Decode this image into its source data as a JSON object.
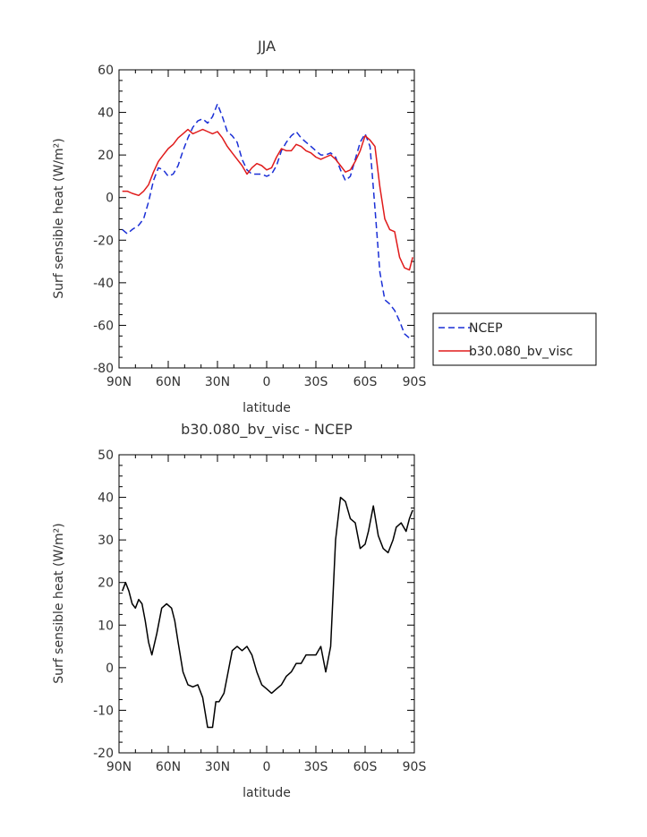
{
  "colors": {
    "ncep": "#1a2fd6",
    "model": "#e01b1b",
    "diff": "#000000",
    "axis": "#000000"
  },
  "chart_data": [
    {
      "type": "line",
      "title": "JJA",
      "xlabel": "latitude",
      "ylabel": "Surf sensible heat (W/m²)",
      "xlim": [
        -90,
        90
      ],
      "ylim": [
        -80,
        60
      ],
      "x_tick_values": [
        -90,
        -60,
        -30,
        0,
        30,
        60,
        90
      ],
      "x_tick_labels": [
        "90N",
        "60N",
        "30N",
        "0",
        "30S",
        "60S",
        "90S"
      ],
      "y_ticks": [
        -80,
        -60,
        -40,
        -20,
        0,
        20,
        40,
        60
      ],
      "legend": "right",
      "series": [
        {
          "name": "NCEP",
          "style": "dashed",
          "x": [
            -88,
            -85,
            -82,
            -78,
            -75,
            -72,
            -69,
            -66,
            -63,
            -60,
            -57,
            -54,
            -51,
            -48,
            -45,
            -42,
            -39,
            -36,
            -33,
            -30,
            -27,
            -24,
            -21,
            -18,
            -15,
            -12,
            -9,
            -6,
            -3,
            0,
            3,
            6,
            9,
            12,
            15,
            18,
            21,
            24,
            27,
            30,
            33,
            36,
            39,
            42,
            45,
            48,
            51,
            54,
            57,
            60,
            63,
            66,
            69,
            72,
            75,
            78,
            81,
            84,
            87,
            89
          ],
          "y": [
            -15,
            -17,
            -15,
            -13,
            -10,
            -2,
            8,
            14,
            13,
            10,
            11,
            15,
            22,
            28,
            33,
            36,
            37,
            35,
            38,
            44,
            38,
            31,
            29,
            26,
            18,
            13,
            11,
            11,
            11,
            10,
            11,
            15,
            22,
            26,
            29,
            31,
            28,
            26,
            24,
            22,
            20,
            20,
            21,
            19,
            13,
            8,
            10,
            18,
            26,
            30,
            24,
            -5,
            -35,
            -48,
            -50,
            -53,
            -58,
            -64,
            -66,
            -66
          ]
        },
        {
          "name": "b30.080_bv_visc",
          "style": "solid",
          "x": [
            -88,
            -85,
            -82,
            -78,
            -75,
            -72,
            -69,
            -66,
            -63,
            -60,
            -57,
            -54,
            -51,
            -48,
            -45,
            -42,
            -39,
            -36,
            -33,
            -30,
            -27,
            -24,
            -21,
            -18,
            -15,
            -12,
            -9,
            -6,
            -3,
            0,
            3,
            6,
            9,
            12,
            15,
            18,
            21,
            24,
            27,
            30,
            33,
            36,
            39,
            42,
            45,
            48,
            51,
            54,
            57,
            60,
            63,
            66,
            69,
            72,
            75,
            78,
            81,
            84,
            87,
            89
          ],
          "y": [
            3,
            3,
            2,
            1,
            3,
            6,
            12,
            17,
            20,
            23,
            25,
            28,
            30,
            32,
            30,
            31,
            32,
            31,
            30,
            31,
            28,
            24,
            21,
            18,
            15,
            11,
            14,
            16,
            15,
            13,
            14,
            19,
            23,
            22,
            22,
            25,
            24,
            22,
            21,
            19,
            18,
            19,
            20,
            18,
            15,
            12,
            13,
            17,
            22,
            29,
            27,
            24,
            5,
            -10,
            -15,
            -16,
            -28,
            -33,
            -34,
            -28
          ]
        }
      ]
    },
    {
      "type": "line",
      "title": "b30.080_bv_visc - NCEP",
      "xlabel": "latitude",
      "ylabel": "Surf sensible heat (W/m²)",
      "xlim": [
        -90,
        90
      ],
      "ylim": [
        -20,
        50
      ],
      "x_tick_values": [
        -90,
        -60,
        -30,
        0,
        30,
        60,
        90
      ],
      "x_tick_labels": [
        "90N",
        "60N",
        "30N",
        "0",
        "30S",
        "60S",
        "90S"
      ],
      "y_ticks": [
        -20,
        -10,
        0,
        10,
        20,
        30,
        40,
        50
      ],
      "series": [
        {
          "style": "solid",
          "x": [
            -88,
            -86,
            -84,
            -82,
            -80,
            -78,
            -76,
            -74,
            -72,
            -70,
            -67,
            -64,
            -61,
            -58,
            -56,
            -54,
            -51,
            -48,
            -45,
            -42,
            -39,
            -36,
            -33,
            -31,
            -29,
            -26,
            -24,
            -21,
            -18,
            -15,
            -12,
            -9,
            -6,
            -3,
            0,
            3,
            6,
            9,
            12,
            15,
            18,
            21,
            24,
            27,
            30,
            33,
            36,
            39,
            42,
            45,
            48,
            51,
            54,
            57,
            60,
            62,
            65,
            68,
            71,
            74,
            77,
            79,
            82,
            85,
            87,
            89
          ],
          "y": [
            18,
            20,
            18,
            15,
            14,
            16,
            15,
            11,
            6,
            3,
            8,
            14,
            15,
            14,
            11,
            6,
            -1,
            -4,
            -4.5,
            -4,
            -7,
            -14,
            -14,
            -8,
            -8,
            -6,
            -2,
            4,
            5,
            4,
            5,
            3,
            -1,
            -4,
            -5,
            -6,
            -5,
            -4,
            -2,
            -1,
            1,
            1,
            3,
            3,
            3,
            5,
            -1,
            5,
            30,
            40,
            39,
            35,
            34,
            28,
            29,
            32,
            38,
            31,
            28,
            27,
            30,
            33,
            34,
            32,
            35,
            37
          ]
        }
      ]
    }
  ]
}
